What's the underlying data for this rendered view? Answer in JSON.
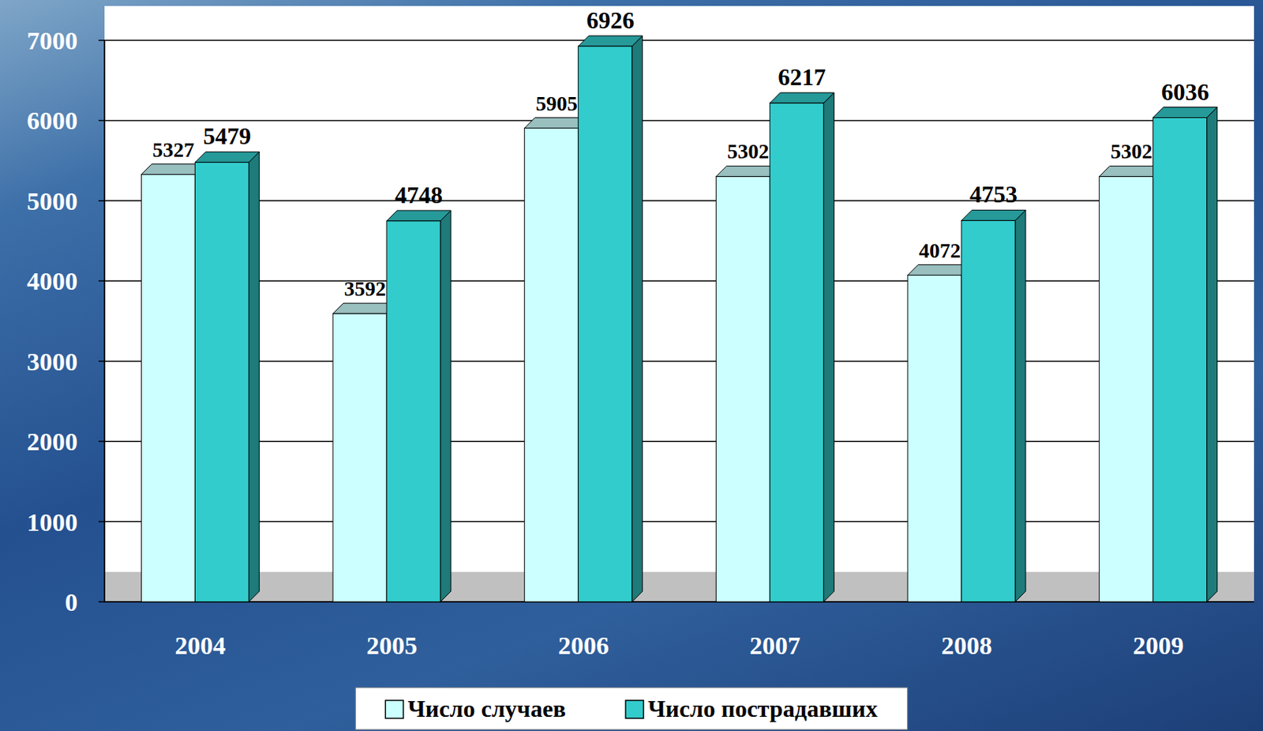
{
  "chart_data": {
    "type": "bar",
    "categories": [
      "2004",
      "2005",
      "2006",
      "2007",
      "2008",
      "2009"
    ],
    "series": [
      {
        "name": "Число случаев",
        "color": "#ccffff",
        "values": [
          5327,
          3592,
          5905,
          5302,
          4072,
          5302
        ]
      },
      {
        "name": "Число пострадавших",
        "color": "#33cccc",
        "values": [
          5479,
          4748,
          6926,
          6217,
          4753,
          6036
        ]
      }
    ],
    "ylim": [
      0,
      7000
    ],
    "yticks": [
      0,
      1000,
      2000,
      3000,
      4000,
      5000,
      6000,
      7000
    ],
    "grid": true,
    "legend": "bottom",
    "data_labels": true
  }
}
